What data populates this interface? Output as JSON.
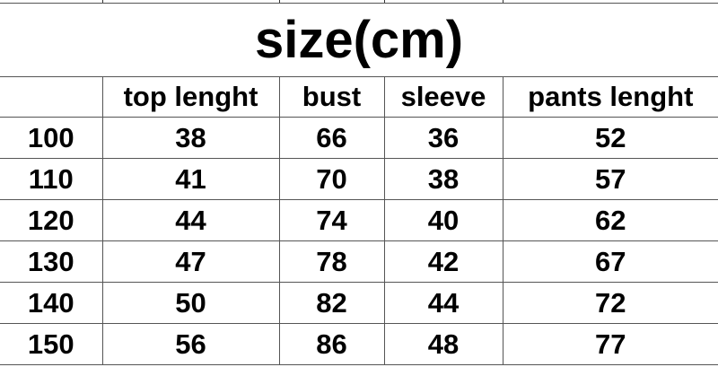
{
  "title": "size(cm)",
  "headers": [
    "",
    "top lenght",
    "bust",
    "sleeve",
    "pants lenght"
  ],
  "rows": [
    [
      "100",
      "38",
      "66",
      "36",
      "52"
    ],
    [
      "110",
      "41",
      "70",
      "38",
      "57"
    ],
    [
      "120",
      "44",
      "74",
      "40",
      "62"
    ],
    [
      "130",
      "47",
      "78",
      "42",
      "67"
    ],
    [
      "140",
      "50",
      "82",
      "44",
      "72"
    ],
    [
      "150",
      "56",
      "86",
      "48",
      "77"
    ]
  ]
}
